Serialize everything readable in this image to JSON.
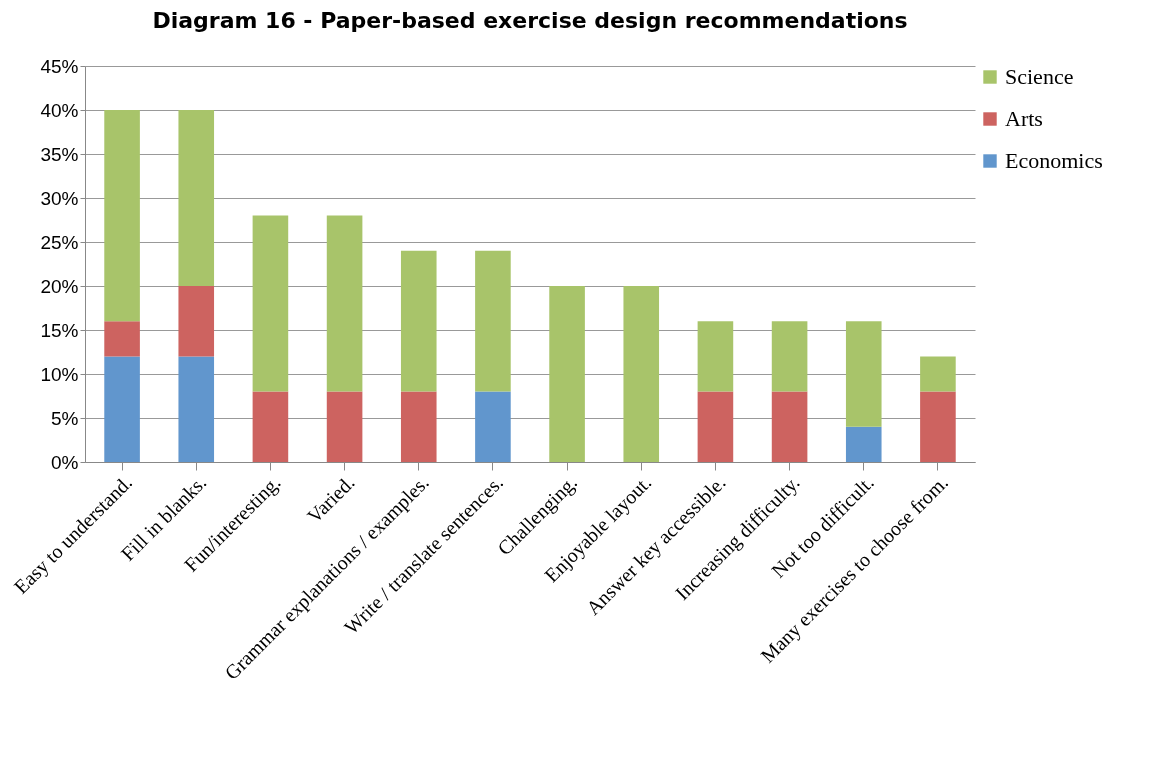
{
  "chart_data": {
    "type": "bar",
    "title": "Diagram 16 - Paper-based exercise design recommendations",
    "categories": [
      "Easy to understand.",
      "Fill in blanks.",
      "Fun/interesting.",
      "Varied.",
      "Grammar explanations / examples.",
      "Write / translate sentences.",
      "Challenging.",
      "Enjoyable layout.",
      "Answer key accessible.",
      "Increasing difficulty.",
      "Not too difficult.",
      "Many exercises to choose from."
    ],
    "stacked": true,
    "series": [
      {
        "name": "Economics",
        "color": "#6196cd",
        "values": [
          12,
          12,
          null,
          null,
          null,
          8,
          null,
          null,
          null,
          null,
          4,
          null
        ]
      },
      {
        "name": "Arts",
        "color": "#cd6360",
        "values": [
          4,
          8,
          8,
          8,
          8,
          null,
          null,
          null,
          8,
          8,
          null,
          8
        ]
      },
      {
        "name": "Science",
        "color": "#a8c46a",
        "values": [
          24,
          20,
          20,
          20,
          16,
          16,
          20,
          20,
          8,
          8,
          12,
          4
        ]
      }
    ],
    "ylim": [
      0,
      45
    ],
    "yticks": [
      {
        "value": 0,
        "label": "0%"
      },
      {
        "value": 5,
        "label": "5%"
      },
      {
        "value": 10,
        "label": "10%"
      },
      {
        "value": 15,
        "label": "15%"
      },
      {
        "value": 20,
        "label": "20%"
      },
      {
        "value": 25,
        "label": "25%"
      },
      {
        "value": 30,
        "label": "30%"
      },
      {
        "value": 35,
        "label": "35%"
      },
      {
        "value": 40,
        "label": "40%"
      },
      {
        "value": 45,
        "label": "45%"
      }
    ],
    "grid": "y",
    "legend": "right"
  }
}
